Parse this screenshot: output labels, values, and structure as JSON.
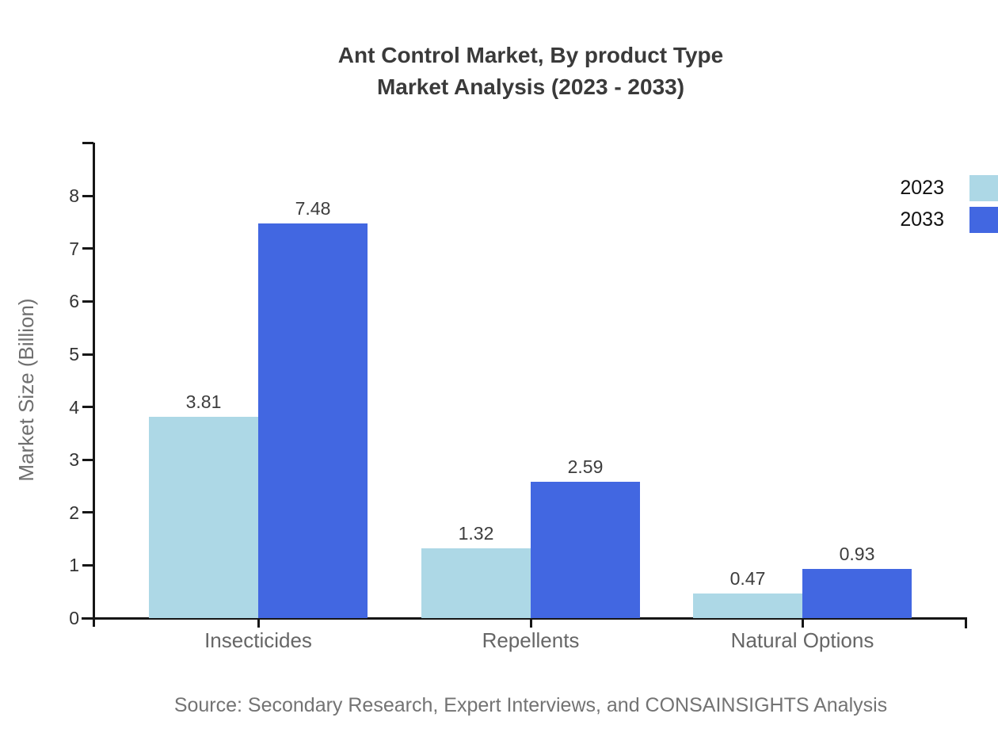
{
  "title": {
    "line1": "Ant Control Market, By product Type",
    "line2": "Market Analysis (2023 - 2033)"
  },
  "source": "Source: Secondary Research, Expert Interviews, and CONSAINSIGHTS Analysis",
  "chart_data": {
    "type": "bar",
    "title": "Ant Control Market, By product Type Market Analysis (2023 - 2033)",
    "categories": [
      "Insecticides",
      "Repellents",
      "Natural Options"
    ],
    "series": [
      {
        "name": "2023",
        "color": "#ADD8E6",
        "values": [
          3.81,
          1.32,
          0.47
        ]
      },
      {
        "name": "2033",
        "color": "#4267E1",
        "values": [
          7.48,
          2.59,
          0.93
        ]
      }
    ],
    "xlabel": "",
    "ylabel": "Market Size (Billion)",
    "ylim": [
      0,
      9
    ],
    "yticks": [
      0,
      1,
      2,
      3,
      4,
      5,
      6,
      7,
      8
    ],
    "grid": false,
    "legend_position": "top-right",
    "value_labels": true,
    "axis_color": "#161616"
  }
}
